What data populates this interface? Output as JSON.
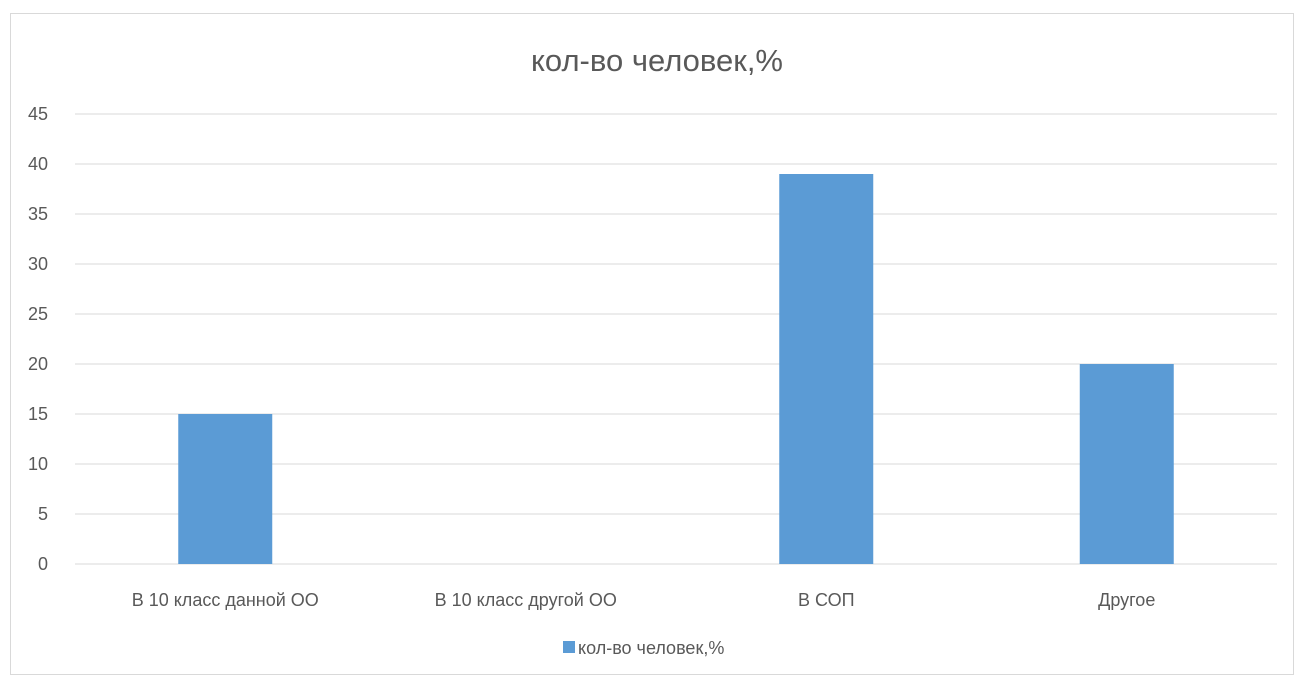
{
  "chart_data": {
    "type": "bar",
    "title": "кол-во человек,%",
    "categories": [
      "В 10 класс данной ОО",
      "В 10 класс другой ОО",
      "В СОП",
      "Другое"
    ],
    "series": [
      {
        "name": "кол-во человек,%",
        "values": [
          15,
          0,
          39,
          20
        ]
      }
    ],
    "ylim": [
      0,
      45
    ],
    "yticks": [
      0,
      5,
      10,
      15,
      20,
      25,
      30,
      35,
      40,
      45
    ],
    "grid": true,
    "legend": "bottom",
    "colors": {
      "bar": "#5b9bd5",
      "grid": "#d9d9d9",
      "text": "#595959"
    }
  }
}
